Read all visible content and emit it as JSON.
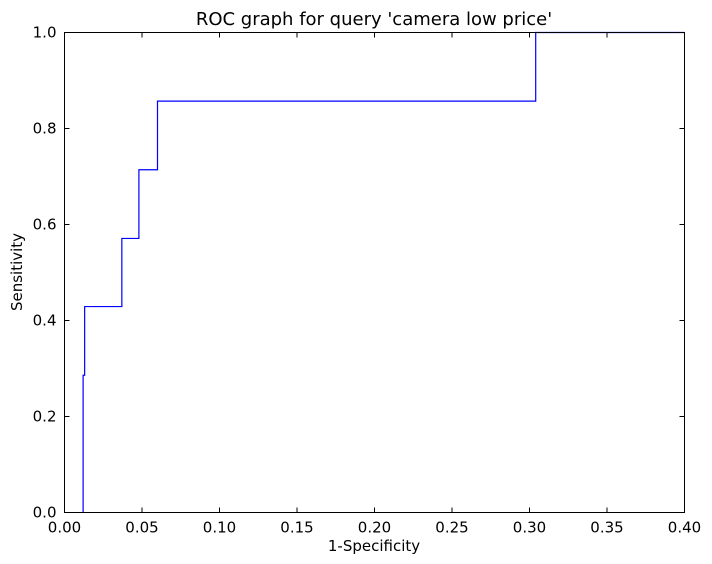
{
  "chart_data": {
    "type": "line",
    "title": "ROC graph for query 'camera low price'",
    "xlabel": "1-Specificity",
    "ylabel": "Sensitivity",
    "xlim": [
      0.0,
      0.4
    ],
    "ylim": [
      0.0,
      1.0
    ],
    "x_ticks": [
      "0.00",
      "0.05",
      "0.10",
      "0.15",
      "0.20",
      "0.25",
      "0.30",
      "0.35",
      "0.40"
    ],
    "y_ticks": [
      "0.0",
      "0.2",
      "0.4",
      "0.6",
      "0.8",
      "1.0"
    ],
    "grid": false,
    "legend": "none",
    "series": [
      {
        "color": "#0000ff",
        "x": [
          0.012,
          0.012,
          0.013,
          0.013,
          0.037,
          0.037,
          0.048,
          0.048,
          0.06,
          0.06,
          0.304,
          0.304,
          0.4
        ],
        "y": [
          0.0,
          0.286,
          0.286,
          0.429,
          0.429,
          0.571,
          0.571,
          0.714,
          0.714,
          0.857,
          0.857,
          1.0,
          1.0
        ]
      }
    ]
  }
}
